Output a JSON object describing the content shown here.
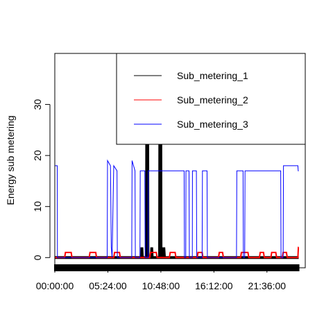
{
  "chart_data": {
    "type": "line",
    "title": "",
    "xlabel": "",
    "ylabel": "Energy sub metering",
    "x_unit": "time of day",
    "xlim": [
      "00:00:00",
      "25:30:00"
    ],
    "ylim": [
      -2,
      40
    ],
    "x_ticks": [
      "00:00:00",
      "05:24:00",
      "10:48:00",
      "16:12:00",
      "21:36:00"
    ],
    "y_ticks": [
      0,
      10,
      20,
      30
    ],
    "legend_position": "top-right",
    "grid": false,
    "series": [
      {
        "name": "Sub_metering_1",
        "color": "#000000",
        "points": [
          [
            "00:00:00",
            0
          ],
          [
            "08:50:00",
            0
          ],
          [
            "08:52:00",
            2
          ],
          [
            "08:55:00",
            0
          ],
          [
            "09:20:00",
            0
          ],
          [
            "09:22:00",
            37
          ],
          [
            "09:27:00",
            37
          ],
          [
            "09:29:00",
            0
          ],
          [
            "09:50:00",
            0
          ],
          [
            "09:52:00",
            2
          ],
          [
            "09:55:00",
            0
          ],
          [
            "10:40:00",
            0
          ],
          [
            "10:42:00",
            37
          ],
          [
            "10:47:00",
            37
          ],
          [
            "10:49:00",
            0
          ],
          [
            "11:05:00",
            0
          ],
          [
            "11:06:00",
            2
          ],
          [
            "11:10:00",
            0
          ],
          [
            "24:50:00",
            0
          ]
        ]
      },
      {
        "name": "Sub_metering_2",
        "color": "#ff0000",
        "points": [
          [
            "00:00:00",
            0
          ],
          [
            "01:00:00",
            0
          ],
          [
            "01:05:00",
            1
          ],
          [
            "01:40:00",
            1
          ],
          [
            "01:45:00",
            0
          ],
          [
            "03:30:00",
            0
          ],
          [
            "03:35:00",
            1
          ],
          [
            "04:10:00",
            1
          ],
          [
            "04:15:00",
            0
          ],
          [
            "06:00:00",
            0
          ],
          [
            "06:05:00",
            1
          ],
          [
            "06:35:00",
            1
          ],
          [
            "06:40:00",
            0
          ],
          [
            "09:40:00",
            0
          ],
          [
            "09:45:00",
            1
          ],
          [
            "10:20:00",
            1
          ],
          [
            "10:25:00",
            0
          ],
          [
            "11:40:00",
            0
          ],
          [
            "11:45:00",
            1
          ],
          [
            "12:15:00",
            1
          ],
          [
            "12:20:00",
            0
          ],
          [
            "14:30:00",
            0
          ],
          [
            "14:35:00",
            1
          ],
          [
            "15:00:00",
            1
          ],
          [
            "15:05:00",
            0
          ],
          [
            "16:40:00",
            0
          ],
          [
            "16:45:00",
            1
          ],
          [
            "17:05:00",
            1
          ],
          [
            "17:10:00",
            0
          ],
          [
            "18:55:00",
            0
          ],
          [
            "19:00:00",
            1
          ],
          [
            "19:40:00",
            1
          ],
          [
            "19:45:00",
            0
          ],
          [
            "20:50:00",
            0
          ],
          [
            "20:55:00",
            1
          ],
          [
            "21:15:00",
            1
          ],
          [
            "21:20:00",
            0
          ],
          [
            "22:00:00",
            0
          ],
          [
            "22:05:00",
            1
          ],
          [
            "22:30:00",
            1
          ],
          [
            "22:35:00",
            0
          ],
          [
            "23:10:00",
            0
          ],
          [
            "23:15:00",
            1
          ],
          [
            "23:35:00",
            1
          ],
          [
            "23:40:00",
            0
          ],
          [
            "24:45:00",
            0
          ],
          [
            "24:48:00",
            2
          ],
          [
            "24:50:00",
            2
          ]
        ]
      },
      {
        "name": "Sub_metering_3",
        "color": "#0000ff",
        "points": [
          [
            "00:00:00",
            18
          ],
          [
            "00:15:00",
            18
          ],
          [
            "00:16:00",
            0
          ],
          [
            "05:20:00",
            0
          ],
          [
            "05:22:00",
            19
          ],
          [
            "05:40:00",
            18
          ],
          [
            "05:45:00",
            2
          ],
          [
            "05:50:00",
            0
          ],
          [
            "06:00:00",
            18
          ],
          [
            "06:20:00",
            17
          ],
          [
            "06:22:00",
            0
          ],
          [
            "07:50:00",
            0
          ],
          [
            "07:52:00",
            19
          ],
          [
            "08:10:00",
            17
          ],
          [
            "08:12:00",
            0
          ],
          [
            "08:40:00",
            0
          ],
          [
            "08:42:00",
            17
          ],
          [
            "09:10:00",
            17
          ],
          [
            "09:12:00",
            0
          ],
          [
            "09:30:00",
            0
          ],
          [
            "09:31:00",
            17
          ],
          [
            "13:10:00",
            17
          ],
          [
            "13:12:00",
            0
          ],
          [
            "13:20:00",
            0
          ],
          [
            "13:21:00",
            17
          ],
          [
            "13:40:00",
            17
          ],
          [
            "13:42:00",
            0
          ],
          [
            "14:00:00",
            0
          ],
          [
            "14:01:00",
            17
          ],
          [
            "14:25:00",
            17
          ],
          [
            "14:27:00",
            0
          ],
          [
            "15:00:00",
            0
          ],
          [
            "15:02:00",
            17
          ],
          [
            "15:30:00",
            17
          ],
          [
            "15:32:00",
            0
          ],
          [
            "18:30:00",
            0
          ],
          [
            "18:32:00",
            17
          ],
          [
            "19:10:00",
            17
          ],
          [
            "19:12:00",
            0
          ],
          [
            "19:20:00",
            0
          ],
          [
            "19:22:00",
            17
          ],
          [
            "23:00:00",
            17
          ],
          [
            "23:02:00",
            0
          ],
          [
            "23:15:00",
            0
          ],
          [
            "23:17:00",
            18
          ],
          [
            "24:45:00",
            18
          ],
          [
            "24:47:00",
            17
          ],
          [
            "24:50:00",
            17
          ]
        ]
      }
    ]
  }
}
